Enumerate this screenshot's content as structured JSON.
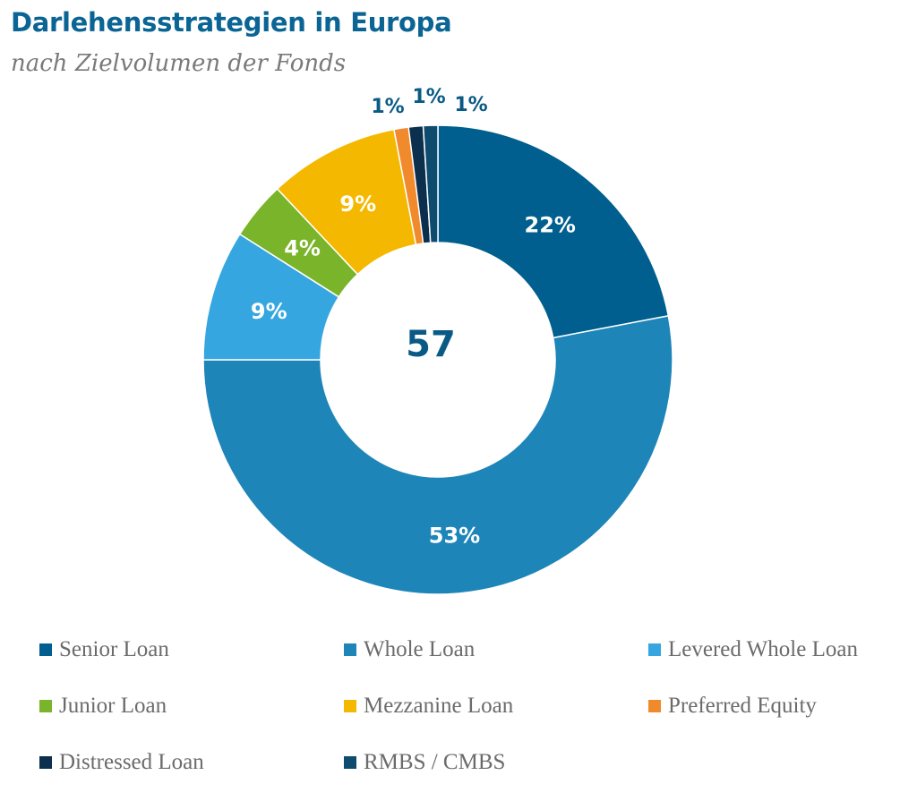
{
  "header": {
    "title": "Darlehensstrategien in Europa",
    "subtitle": "nach Zielvolumen der Fonds"
  },
  "chart_data": {
    "type": "pie",
    "variant": "donut",
    "center_label": "57",
    "legend_position": "bottom",
    "slices": [
      {
        "name": "Senior Loan",
        "value": 22,
        "label": "22%",
        "color": "#005f8e",
        "label_inside": true
      },
      {
        "name": "Whole Loan",
        "value": 53,
        "label": "53%",
        "color": "#1e85b9",
        "label_inside": true
      },
      {
        "name": "Levered Whole Loan",
        "value": 9,
        "label": "9%",
        "color": "#35a6df",
        "label_inside": true
      },
      {
        "name": "Junior Loan",
        "value": 4,
        "label": "4%",
        "color": "#7ab42a",
        "label_inside": true
      },
      {
        "name": "Mezzanine Loan",
        "value": 9,
        "label": "9%",
        "color": "#f5b800",
        "label_inside": true
      },
      {
        "name": "Preferred Equity",
        "value": 1,
        "label": "1%",
        "color": "#f08a2c",
        "label_inside": false
      },
      {
        "name": "Distressed Loan",
        "value": 1,
        "label": "1%",
        "color": "#0b2f4c",
        "label_inside": false
      },
      {
        "name": "RMBS / CMBS",
        "value": 1,
        "label": "1%",
        "color": "#0d4c6e",
        "label_inside": false
      }
    ]
  }
}
